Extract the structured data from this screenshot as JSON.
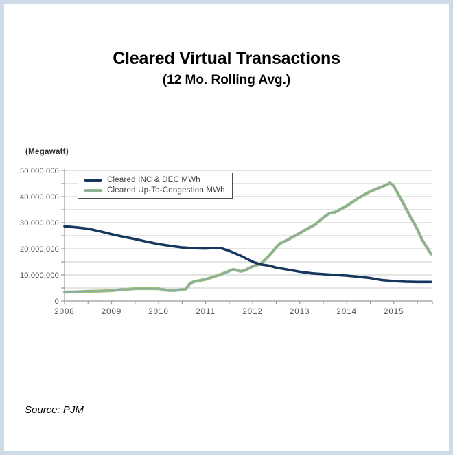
{
  "header": {
    "title": "Cleared Virtual Transactions",
    "subtitle": "(12 Mo. Rolling Avg.)"
  },
  "source": {
    "label": "Source: PJM"
  },
  "colors": {
    "frame_border": "#cfdae9",
    "grid": "#c9c9c9",
    "axis": "#9b9b9b",
    "tick_text": "#4d4d4d",
    "legend_border": "#4d4d4d",
    "inc_dec_line": "#17365d",
    "utc_line_outer": "#9cbe7d",
    "utc_line_inner": "#87a9ac"
  },
  "chart_data": {
    "type": "line",
    "title": "Cleared Virtual Transactions (12 Mo. Rolling Avg.)",
    "unit_label": "(Megawatt)",
    "xlabel": "",
    "ylabel": "(Megawatt)",
    "ylim": [
      0,
      50000000
    ],
    "xlim": [
      2008,
      2015.82
    ],
    "grid": true,
    "y_grid_step": 5000000,
    "y_tick_step": 10000000,
    "y_ticks": [
      "0",
      "10,000,000",
      "20,000,000",
      "30,000,000",
      "40,000,000",
      "50,000,000"
    ],
    "x_ticks": [
      "2008",
      "2009",
      "2010",
      "2011",
      "2012",
      "2013",
      "2014",
      "2015"
    ],
    "x_minor_tick_step": 0.5,
    "legend_position": "top-left",
    "series": [
      {
        "name": "Cleared INC & DEC MWh",
        "color": "#17365d",
        "x": [
          2008.0,
          2008.25,
          2008.5,
          2008.75,
          2009.0,
          2009.25,
          2009.5,
          2009.75,
          2010.0,
          2010.25,
          2010.5,
          2010.75,
          2011.0,
          2011.17,
          2011.33,
          2011.5,
          2011.75,
          2012.0,
          2012.17,
          2012.33,
          2012.5,
          2012.75,
          2013.0,
          2013.25,
          2013.5,
          2013.75,
          2014.0,
          2014.25,
          2014.5,
          2014.75,
          2015.0,
          2015.25,
          2015.5,
          2015.79
        ],
        "values_mwh": [
          28600000,
          28200000,
          27700000,
          26700000,
          25600000,
          24600000,
          23700000,
          22700000,
          21800000,
          21100000,
          20500000,
          20200000,
          20100000,
          20300000,
          20200000,
          19200000,
          17300000,
          15000000,
          14000000,
          13600000,
          12800000,
          12000000,
          11200000,
          10600000,
          10300000,
          10000000,
          9700000,
          9300000,
          8800000,
          8000000,
          7600000,
          7400000,
          7300000,
          7300000
        ]
      },
      {
        "name": "Cleared Up-To-Congestion MWh",
        "color": "#9cbe7d",
        "color_inner": "#87a9ac",
        "x": [
          2008.0,
          2008.25,
          2008.5,
          2008.75,
          2009.0,
          2009.25,
          2009.5,
          2009.75,
          2010.0,
          2010.17,
          2010.33,
          2010.5,
          2010.58,
          2010.67,
          2010.75,
          2011.0,
          2011.17,
          2011.33,
          2011.5,
          2011.58,
          2011.75,
          2011.83,
          2012.0,
          2012.17,
          2012.33,
          2012.5,
          2012.58,
          2012.75,
          2013.0,
          2013.17,
          2013.33,
          2013.5,
          2013.63,
          2013.75,
          2014.0,
          2014.25,
          2014.5,
          2014.75,
          2014.92,
          2015.0,
          2015.17,
          2015.33,
          2015.5,
          2015.6,
          2015.79
        ],
        "values_mwh": [
          3400000,
          3500000,
          3700000,
          3800000,
          4000000,
          4400000,
          4700000,
          4800000,
          4700000,
          4100000,
          4000000,
          4400000,
          4600000,
          6800000,
          7400000,
          8300000,
          9300000,
          10200000,
          11500000,
          12100000,
          11400000,
          11700000,
          13300000,
          14200000,
          17000000,
          20500000,
          22000000,
          23500000,
          26000000,
          27800000,
          29300000,
          32000000,
          33600000,
          34000000,
          36500000,
          39500000,
          42000000,
          43800000,
          45200000,
          44000000,
          38500000,
          33000000,
          27500000,
          23500000,
          18000000
        ]
      }
    ]
  }
}
